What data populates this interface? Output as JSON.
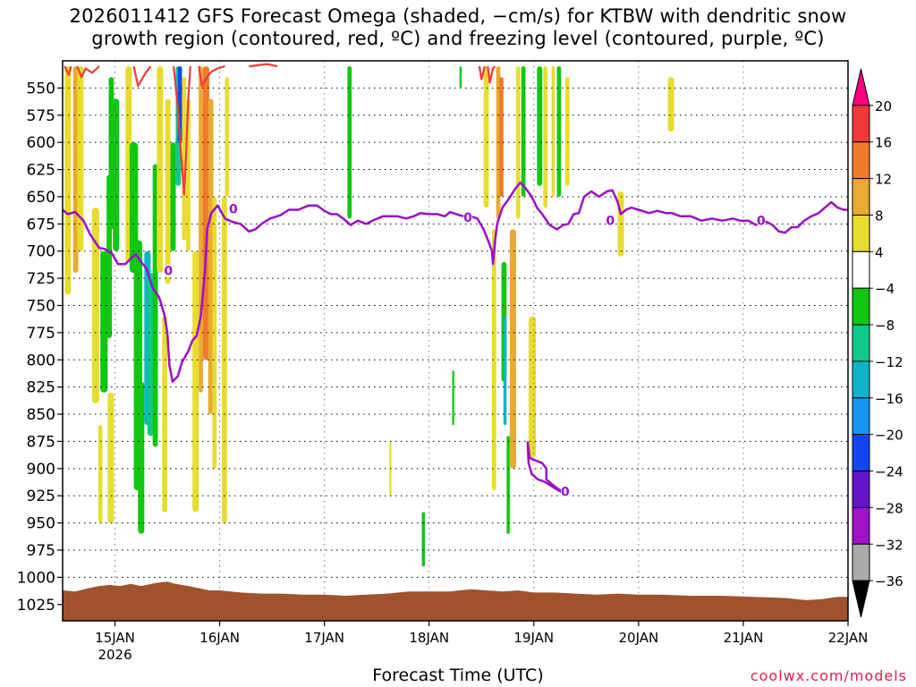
{
  "title_line1": "2026011412 GFS Forecast Omega (shaded, −cm/s) for KTBW with dendritic snow",
  "title_line2": "growth region (contoured, red, ºC) and freezing level (contoured, purple, ºC)",
  "credit": "coolwx.com/models",
  "chart_data": {
    "type": "heatmap",
    "xlabel": "Forecast Time (UTC)",
    "ylabel": "",
    "x_range_days": [
      14.5,
      22.0
    ],
    "y_range_hpa": [
      1040,
      525
    ],
    "y_ticks": [
      550,
      575,
      600,
      625,
      650,
      675,
      700,
      725,
      750,
      775,
      800,
      825,
      850,
      875,
      900,
      925,
      950,
      975,
      1000,
      1025
    ],
    "x_ticks": [
      {
        "day": 15,
        "label": "15JAN",
        "sub": "2026"
      },
      {
        "day": 16,
        "label": "16JAN",
        "sub": ""
      },
      {
        "day": 17,
        "label": "17JAN",
        "sub": ""
      },
      {
        "day": 18,
        "label": "18JAN",
        "sub": ""
      },
      {
        "day": 19,
        "label": "19JAN",
        "sub": ""
      },
      {
        "day": 20,
        "label": "20JAN",
        "sub": ""
      },
      {
        "day": 21,
        "label": "21JAN",
        "sub": ""
      },
      {
        "day": 22,
        "label": "22JAN",
        "sub": ""
      }
    ],
    "grid": true,
    "colorbar": {
      "labels": [
        "20",
        "16",
        "12",
        "8",
        "4",
        "−4",
        "−8",
        "−12",
        "−16",
        "−20",
        "−24",
        "−28",
        "−32",
        "−36"
      ],
      "colors": [
        "#ff0080",
        "#f03a3a",
        "#f07a28",
        "#e8aa30",
        "#e8dc30",
        "#ffffff",
        "#10c810",
        "#10c88c",
        "#10b4c8",
        "#1496f0",
        "#1446f0",
        "#6414c8",
        "#a014c8",
        "#aaaaaa",
        "#000000"
      ]
    },
    "omega_bands": [
      {
        "t0": 14.52,
        "t1": 14.58,
        "p0": 530,
        "p1": 740,
        "v": 6
      },
      {
        "t0": 14.6,
        "t1": 14.65,
        "p0": 530,
        "p1": 720,
        "v": 11
      },
      {
        "t0": 14.64,
        "t1": 14.7,
        "p0": 530,
        "p1": 700,
        "v": 5
      },
      {
        "t0": 14.78,
        "t1": 14.85,
        "p0": 660,
        "p1": 840,
        "v": 5
      },
      {
        "t0": 14.84,
        "t1": 14.88,
        "p0": 860,
        "p1": 950,
        "v": 5
      },
      {
        "t0": 14.86,
        "t1": 14.93,
        "p0": 700,
        "p1": 830,
        "v": -7
      },
      {
        "t0": 14.92,
        "t1": 14.97,
        "p0": 630,
        "p1": 780,
        "v": -8
      },
      {
        "t0": 14.94,
        "t1": 14.99,
        "p0": 540,
        "p1": 680,
        "v": -6
      },
      {
        "t0": 14.98,
        "t1": 15.04,
        "p0": 560,
        "p1": 700,
        "v": -6
      },
      {
        "t0": 14.93,
        "t1": 14.99,
        "p0": 830,
        "p1": 950,
        "v": 5
      },
      {
        "t0": 15.1,
        "t1": 15.16,
        "p0": 530,
        "p1": 710,
        "v": 6
      },
      {
        "t0": 15.14,
        "t1": 15.22,
        "p0": 600,
        "p1": 720,
        "v": -7
      },
      {
        "t0": 15.18,
        "t1": 15.26,
        "p0": 690,
        "p1": 920,
        "v": -7
      },
      {
        "t0": 15.22,
        "t1": 15.28,
        "p0": 820,
        "p1": 960,
        "v": -8
      },
      {
        "t0": 15.28,
        "t1": 15.34,
        "p0": 700,
        "p1": 860,
        "v": -13
      },
      {
        "t0": 15.31,
        "t1": 15.37,
        "p0": 720,
        "p1": 870,
        "v": -9
      },
      {
        "t0": 15.36,
        "t1": 15.41,
        "p0": 620,
        "p1": 880,
        "v": -6
      },
      {
        "t0": 15.4,
        "t1": 15.46,
        "p0": 530,
        "p1": 720,
        "v": 5
      },
      {
        "t0": 15.45,
        "t1": 15.5,
        "p0": 760,
        "p1": 940,
        "v": 5
      },
      {
        "t0": 15.48,
        "t1": 15.53,
        "p0": 560,
        "p1": 730,
        "v": 5
      },
      {
        "t0": 15.53,
        "t1": 15.58,
        "p0": 600,
        "p1": 700,
        "v": -7
      },
      {
        "t0": 15.58,
        "t1": 15.63,
        "p0": 530,
        "p1": 640,
        "v": -11
      },
      {
        "t0": 15.6,
        "t1": 15.64,
        "p0": 530,
        "p1": 600,
        "v": -22
      },
      {
        "t0": 15.64,
        "t1": 15.68,
        "p0": 540,
        "p1": 690,
        "v": 5
      },
      {
        "t0": 15.68,
        "t1": 15.72,
        "p0": 560,
        "p1": 700,
        "v": 6
      },
      {
        "t0": 15.74,
        "t1": 15.8,
        "p0": 700,
        "p1": 940,
        "v": 5
      },
      {
        "t0": 15.8,
        "t1": 15.84,
        "p0": 530,
        "p1": 830,
        "v": 10
      },
      {
        "t0": 15.84,
        "t1": 15.9,
        "p0": 530,
        "p1": 800,
        "v": 13
      },
      {
        "t0": 15.89,
        "t1": 15.94,
        "p0": 560,
        "p1": 850,
        "v": 9
      },
      {
        "t0": 15.93,
        "t1": 15.97,
        "p0": 650,
        "p1": 900,
        "v": 5
      },
      {
        "t0": 16.02,
        "t1": 16.07,
        "p0": 650,
        "p1": 950,
        "v": 6
      },
      {
        "t0": 16.05,
        "t1": 16.09,
        "p0": 540,
        "p1": 650,
        "v": 5
      },
      {
        "t0": 17.22,
        "t1": 17.26,
        "p0": 530,
        "p1": 670,
        "v": -7
      },
      {
        "t0": 17.62,
        "t1": 17.64,
        "p0": 875,
        "p1": 925,
        "v": 5
      },
      {
        "t0": 17.93,
        "t1": 17.96,
        "p0": 940,
        "p1": 990,
        "v": -7
      },
      {
        "t0": 18.22,
        "t1": 18.24,
        "p0": 810,
        "p1": 860,
        "v": -6
      },
      {
        "t0": 18.29,
        "t1": 18.31,
        "p0": 530,
        "p1": 550,
        "v": -6
      },
      {
        "t0": 18.52,
        "t1": 18.57,
        "p0": 530,
        "p1": 660,
        "v": 5
      },
      {
        "t0": 18.6,
        "t1": 18.64,
        "p0": 680,
        "p1": 920,
        "v": 5
      },
      {
        "t0": 18.64,
        "t1": 18.68,
        "p0": 530,
        "p1": 670,
        "v": 10
      },
      {
        "t0": 18.67,
        "t1": 18.71,
        "p0": 540,
        "p1": 650,
        "v": 14
      },
      {
        "t0": 18.69,
        "t1": 18.74,
        "p0": 710,
        "p1": 820,
        "v": -6
      },
      {
        "t0": 18.71,
        "t1": 18.74,
        "p0": 760,
        "p1": 860,
        "v": -14
      },
      {
        "t0": 18.74,
        "t1": 18.77,
        "p0": 870,
        "p1": 960,
        "v": -8
      },
      {
        "t0": 18.77,
        "t1": 18.83,
        "p0": 680,
        "p1": 900,
        "v": 9
      },
      {
        "t0": 18.83,
        "t1": 18.87,
        "p0": 530,
        "p1": 670,
        "v": 6
      },
      {
        "t0": 18.88,
        "t1": 18.92,
        "p0": 530,
        "p1": 650,
        "v": -7
      },
      {
        "t0": 18.95,
        "t1": 19.02,
        "p0": 760,
        "p1": 890,
        "v": 5
      },
      {
        "t0": 19.03,
        "t1": 19.08,
        "p0": 530,
        "p1": 640,
        "v": -7
      },
      {
        "t0": 19.09,
        "t1": 19.13,
        "p0": 530,
        "p1": 660,
        "v": 5
      },
      {
        "t0": 19.17,
        "t1": 19.2,
        "p0": 530,
        "p1": 650,
        "v": 5
      },
      {
        "t0": 19.22,
        "t1": 19.26,
        "p0": 530,
        "p1": 650,
        "v": -7
      },
      {
        "t0": 19.3,
        "t1": 19.34,
        "p0": 540,
        "p1": 640,
        "v": 5
      },
      {
        "t0": 19.8,
        "t1": 19.86,
        "p0": 645,
        "p1": 705,
        "v": 5
      },
      {
        "t0": 20.28,
        "t1": 20.34,
        "p0": 540,
        "p1": 590,
        "v": 5
      }
    ],
    "dendritic_contours": [
      [
        [
          14.52,
          530
        ],
        [
          14.56,
          538
        ],
        [
          14.58,
          530
        ]
      ],
      [
        [
          14.64,
          530
        ],
        [
          14.68,
          540
        ],
        [
          14.72,
          532
        ],
        [
          14.78,
          536
        ],
        [
          14.85,
          530
        ]
      ],
      [
        [
          15.18,
          530
        ],
        [
          15.22,
          548
        ],
        [
          15.28,
          538
        ],
        [
          15.34,
          530
        ]
      ],
      [
        [
          15.56,
          530
        ],
        [
          15.6,
          568
        ],
        [
          15.63,
          610
        ],
        [
          15.66,
          648
        ],
        [
          15.68,
          610
        ],
        [
          15.7,
          560
        ],
        [
          15.72,
          530
        ]
      ],
      [
        [
          15.8,
          530
        ],
        [
          15.83,
          548
        ],
        [
          15.88,
          540
        ],
        [
          15.92,
          535
        ],
        [
          15.98,
          532
        ],
        [
          16.05,
          530
        ]
      ],
      [
        [
          16.28,
          530
        ],
        [
          16.45,
          528
        ],
        [
          16.55,
          530
        ]
      ],
      [
        [
          18.48,
          530
        ],
        [
          18.5,
          542
        ],
        [
          18.53,
          530
        ]
      ],
      [
        [
          18.56,
          530
        ],
        [
          18.58,
          545
        ],
        [
          18.61,
          532
        ],
        [
          18.63,
          530
        ]
      ]
    ],
    "freezing_level": [
      [
        14.5,
        662
      ],
      [
        14.55,
        666
      ],
      [
        14.62,
        664
      ],
      [
        14.7,
        672
      ],
      [
        14.76,
        684
      ],
      [
        14.8,
        690
      ],
      [
        14.85,
        697
      ],
      [
        14.9,
        698
      ],
      [
        14.97,
        702
      ],
      [
        15.03,
        712
      ],
      [
        15.1,
        712
      ],
      [
        15.17,
        705
      ],
      [
        15.2,
        703
      ],
      [
        15.25,
        710
      ],
      [
        15.3,
        716
      ],
      [
        15.36,
        734
      ],
      [
        15.42,
        742
      ],
      [
        15.47,
        758
      ],
      [
        15.5,
        775
      ],
      [
        15.52,
        805
      ],
      [
        15.55,
        820
      ],
      [
        15.6,
        815
      ],
      [
        15.64,
        802
      ],
      [
        15.7,
        792
      ],
      [
        15.74,
        782
      ],
      [
        15.78,
        778
      ],
      [
        15.82,
        760
      ],
      [
        15.86,
        718
      ],
      [
        15.88,
        680
      ],
      [
        15.92,
        665
      ],
      [
        15.98,
        658
      ],
      [
        16.05,
        670
      ],
      [
        16.12,
        673
      ],
      [
        16.2,
        675
      ],
      [
        16.28,
        682
      ],
      [
        16.34,
        680
      ],
      [
        16.4,
        675
      ],
      [
        16.48,
        670
      ],
      [
        16.58,
        667
      ],
      [
        16.66,
        662
      ],
      [
        16.75,
        662
      ],
      [
        16.85,
        658
      ],
      [
        16.93,
        658
      ],
      [
        17.0,
        663
      ],
      [
        17.06,
        666
      ],
      [
        17.12,
        666
      ],
      [
        17.18,
        670
      ],
      [
        17.25,
        676
      ],
      [
        17.32,
        672
      ],
      [
        17.4,
        675
      ],
      [
        17.48,
        671
      ],
      [
        17.56,
        668
      ],
      [
        17.63,
        668
      ],
      [
        17.7,
        668
      ],
      [
        17.78,
        670
      ],
      [
        17.85,
        668
      ],
      [
        17.92,
        665
      ],
      [
        18.0,
        666
      ],
      [
        18.08,
        666
      ],
      [
        18.15,
        668
      ],
      [
        18.2,
        664
      ],
      [
        18.26,
        666
      ],
      [
        18.33,
        668
      ],
      [
        18.4,
        668
      ],
      [
        18.46,
        670
      ],
      [
        18.52,
        680
      ],
      [
        18.57,
        692
      ],
      [
        18.6,
        700
      ],
      [
        18.61,
        712
      ],
      [
        18.63,
        690
      ],
      [
        18.65,
        675
      ],
      [
        18.7,
        660
      ],
      [
        18.76,
        652
      ],
      [
        18.82,
        643
      ],
      [
        18.87,
        637
      ],
      [
        18.92,
        642
      ],
      [
        18.98,
        650
      ],
      [
        19.03,
        660
      ],
      [
        19.08,
        666
      ],
      [
        19.15,
        676
      ],
      [
        19.22,
        680
      ],
      [
        19.28,
        676
      ],
      [
        19.33,
        675
      ],
      [
        19.38,
        666
      ],
      [
        19.43,
        665
      ],
      [
        19.48,
        650
      ],
      [
        19.55,
        645
      ],
      [
        19.62,
        650
      ],
      [
        19.7,
        645
      ],
      [
        19.75,
        644
      ],
      [
        19.8,
        655
      ],
      [
        19.83,
        666
      ],
      [
        19.88,
        662
      ],
      [
        19.93,
        660
      ],
      [
        20.0,
        662
      ],
      [
        20.1,
        665
      ],
      [
        20.18,
        663
      ],
      [
        20.26,
        665
      ],
      [
        20.32,
        665
      ],
      [
        20.4,
        668
      ],
      [
        20.5,
        668
      ],
      [
        20.6,
        672
      ],
      [
        20.7,
        670
      ],
      [
        20.8,
        672
      ],
      [
        20.9,
        670
      ],
      [
        20.97,
        672
      ],
      [
        21.05,
        672
      ],
      [
        21.12,
        676
      ],
      [
        21.2,
        672
      ],
      [
        21.28,
        676
      ],
      [
        21.34,
        682
      ],
      [
        21.4,
        683
      ],
      [
        21.46,
        678
      ],
      [
        21.52,
        678
      ],
      [
        21.58,
        672
      ],
      [
        21.65,
        668
      ],
      [
        21.72,
        665
      ],
      [
        21.78,
        660
      ],
      [
        21.84,
        655
      ],
      [
        21.9,
        660
      ],
      [
        21.96,
        662
      ],
      [
        22.0,
        662
      ]
    ],
    "freezing_level_segment2": [
      [
        18.94,
        875
      ],
      [
        18.96,
        890
      ],
      [
        19.0,
        892
      ],
      [
        19.08,
        895
      ],
      [
        19.12,
        900
      ],
      [
        19.12,
        910
      ],
      [
        19.18,
        915
      ],
      [
        19.25,
        920
      ],
      [
        19.3,
        918
      ],
      [
        19.27,
        922
      ],
      [
        19.2,
        918
      ],
      [
        19.1,
        912
      ],
      [
        19.04,
        910
      ],
      [
        18.98,
        905
      ],
      [
        18.95,
        895
      ],
      [
        18.94,
        875
      ]
    ],
    "contour_labels": [
      {
        "t": 15.51,
        "p": 718,
        "text": "0"
      },
      {
        "t": 16.13,
        "p": 661,
        "text": "0"
      },
      {
        "t": 18.37,
        "p": 669,
        "text": "0"
      },
      {
        "t": 19.73,
        "p": 672,
        "text": "0"
      },
      {
        "t": 21.17,
        "p": 672,
        "text": "0"
      },
      {
        "t": 19.3,
        "p": 921,
        "text": "0"
      }
    ],
    "terrain_surface": [
      [
        14.5,
        1012
      ],
      [
        14.62,
        1013
      ],
      [
        14.75,
        1010
      ],
      [
        14.85,
        1008
      ],
      [
        14.95,
        1007
      ],
      [
        15.05,
        1008
      ],
      [
        15.15,
        1006
      ],
      [
        15.25,
        1008
      ],
      [
        15.4,
        1005
      ],
      [
        15.5,
        1004
      ],
      [
        15.58,
        1006
      ],
      [
        15.7,
        1008
      ],
      [
        15.8,
        1010
      ],
      [
        15.9,
        1012
      ],
      [
        16.0,
        1012
      ],
      [
        16.2,
        1014
      ],
      [
        16.4,
        1015
      ],
      [
        16.6,
        1015
      ],
      [
        16.8,
        1016
      ],
      [
        17.0,
        1016
      ],
      [
        17.2,
        1017
      ],
      [
        17.4,
        1016
      ],
      [
        17.6,
        1015
      ],
      [
        17.8,
        1013
      ],
      [
        18.0,
        1013
      ],
      [
        18.2,
        1013
      ],
      [
        18.4,
        1011
      ],
      [
        18.55,
        1012
      ],
      [
        18.7,
        1013
      ],
      [
        18.85,
        1012
      ],
      [
        19.0,
        1014
      ],
      [
        19.2,
        1014
      ],
      [
        19.4,
        1015
      ],
      [
        19.6,
        1016
      ],
      [
        19.8,
        1015
      ],
      [
        20.0,
        1016
      ],
      [
        20.2,
        1016
      ],
      [
        20.5,
        1017
      ],
      [
        20.8,
        1017
      ],
      [
        21.1,
        1018
      ],
      [
        21.4,
        1019
      ],
      [
        21.6,
        1021
      ],
      [
        21.75,
        1020
      ],
      [
        21.9,
        1018
      ],
      [
        22.0,
        1018
      ]
    ]
  }
}
